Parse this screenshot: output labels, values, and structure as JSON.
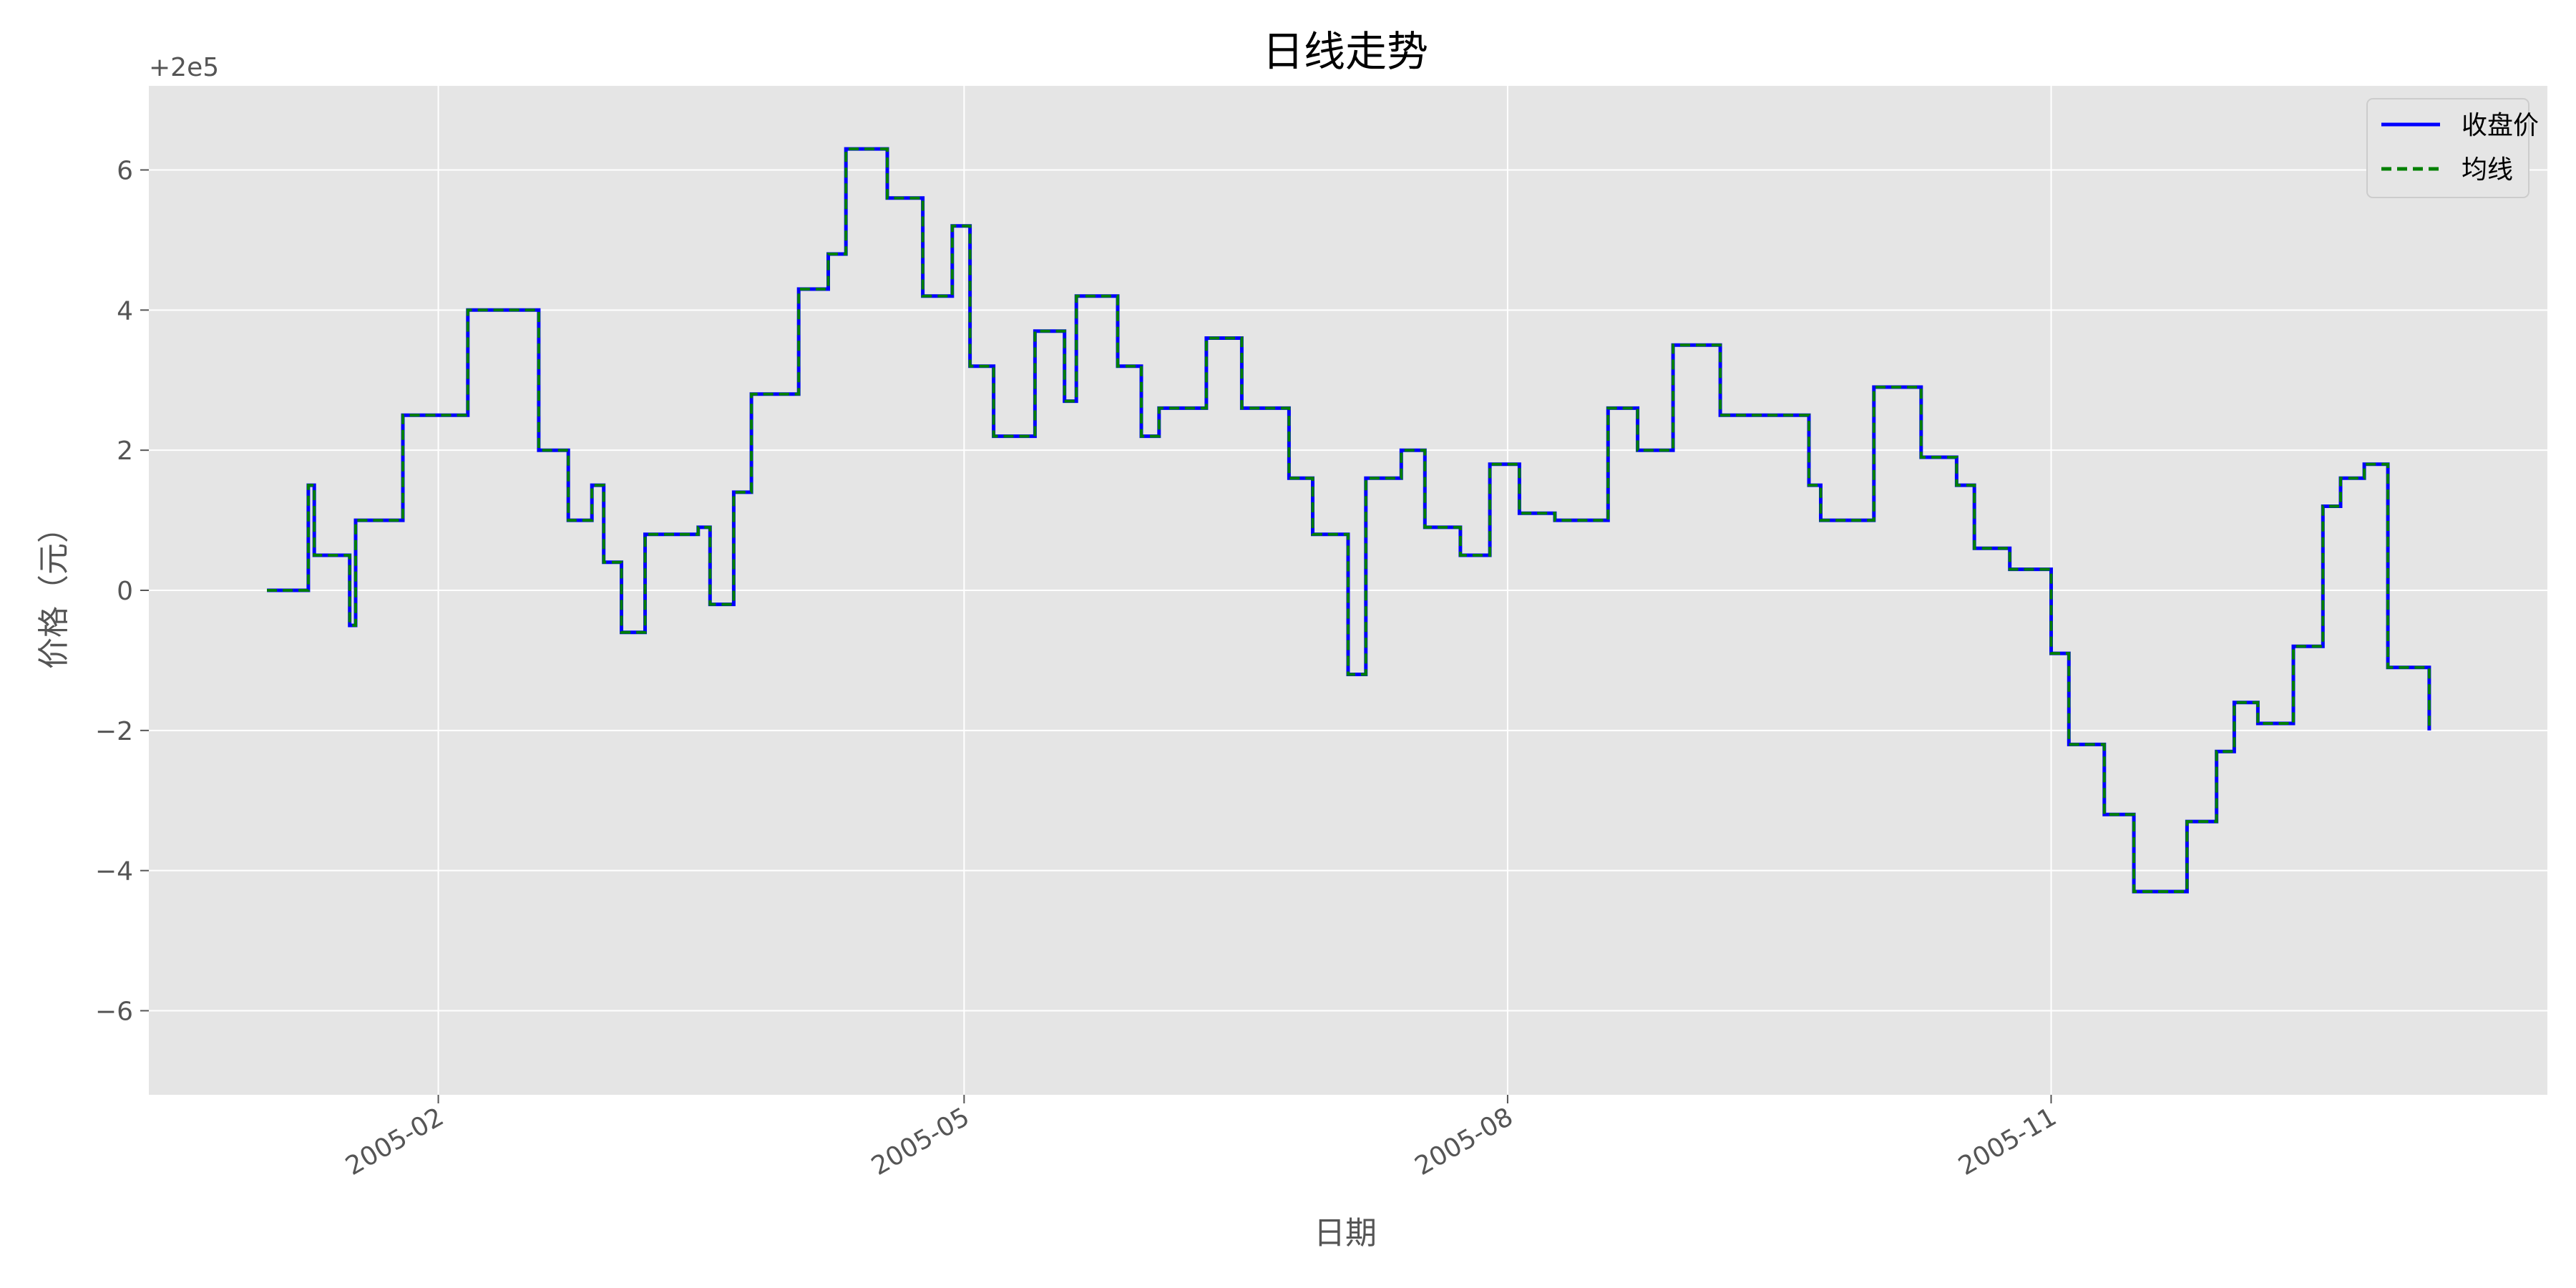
{
  "chart_data": {
    "type": "line",
    "title": "日线走势",
    "xlabel": "日期",
    "ylabel": "价格（元）",
    "y_offset_label": "+2e5",
    "x_ticks": [
      "2005-02",
      "2005-05",
      "2005-08",
      "2005-11"
    ],
    "x_tick_dates": [
      "2005-02-01",
      "2005-05-01",
      "2005-08-01",
      "2005-11-01"
    ],
    "xlim": [
      "2004-12-14",
      "2006-01-24"
    ],
    "y_ticks": [
      -6,
      -4,
      -2,
      0,
      2,
      4,
      6
    ],
    "y_tick_labels": [
      "−6",
      "−4",
      "−2",
      "0",
      "2",
      "4",
      "6"
    ],
    "ylim": [
      -7.2,
      7.2
    ],
    "grid": true,
    "legend_position": "top-right",
    "series": [
      {
        "name": "收盘价",
        "color": "#0000ff",
        "style": "solid",
        "x": [
          "2005-01-03",
          "2005-01-10",
          "2005-01-11",
          "2005-01-17",
          "2005-01-18",
          "2005-01-26",
          "2005-02-06",
          "2005-02-18",
          "2005-02-23",
          "2005-02-27",
          "2005-03-01",
          "2005-03-04",
          "2005-03-08",
          "2005-03-17",
          "2005-03-19",
          "2005-03-23",
          "2005-03-26",
          "2005-04-03",
          "2005-04-08",
          "2005-04-11",
          "2005-04-18",
          "2005-04-24",
          "2005-04-29",
          "2005-05-02",
          "2005-05-06",
          "2005-05-13",
          "2005-05-18",
          "2005-05-20",
          "2005-05-27",
          "2005-05-31",
          "2005-06-03",
          "2005-06-11",
          "2005-06-17",
          "2005-06-25",
          "2005-06-29",
          "2005-07-05",
          "2005-07-08",
          "2005-07-14",
          "2005-07-18",
          "2005-07-24",
          "2005-07-29",
          "2005-08-03",
          "2005-08-09",
          "2005-08-18",
          "2005-08-23",
          "2005-08-29",
          "2005-09-06",
          "2005-09-21",
          "2005-09-23",
          "2005-10-02",
          "2005-10-10",
          "2005-10-16",
          "2005-10-19",
          "2005-10-25",
          "2005-11-01",
          "2005-11-04",
          "2005-11-10",
          "2005-11-15",
          "2005-11-24",
          "2005-11-29",
          "2005-12-02",
          "2005-12-06",
          "2005-12-12",
          "2005-12-17",
          "2005-12-20",
          "2005-12-24",
          "2005-12-28",
          "2006-01-04"
        ],
        "y": [
          0.0,
          1.5,
          0.5,
          -0.5,
          1.0,
          2.5,
          4.0,
          2.0,
          1.0,
          1.5,
          0.4,
          -0.6,
          0.8,
          0.9,
          -0.2,
          1.4,
          2.8,
          4.3,
          4.8,
          6.3,
          5.6,
          4.2,
          5.2,
          3.2,
          2.2,
          3.7,
          2.7,
          4.2,
          3.2,
          2.2,
          2.6,
          3.6,
          2.6,
          1.6,
          0.8,
          -1.2,
          1.6,
          2.0,
          0.9,
          0.5,
          1.8,
          1.1,
          1.0,
          2.6,
          2.0,
          3.5,
          2.5,
          1.5,
          1.0,
          2.9,
          1.9,
          1.5,
          0.6,
          0.3,
          -0.9,
          -2.2,
          -3.2,
          -4.3,
          -3.3,
          -2.3,
          -1.6,
          -1.9,
          -0.8,
          1.2,
          1.6,
          1.8,
          -1.1,
          -2.0
        ]
      },
      {
        "name": "均线",
        "color": "#008000",
        "style": "dashed",
        "x": [
          "2005-01-03",
          "2005-01-10",
          "2005-01-11",
          "2005-01-17",
          "2005-01-18",
          "2005-01-26",
          "2005-02-06",
          "2005-02-18",
          "2005-02-23",
          "2005-02-27",
          "2005-03-01",
          "2005-03-04",
          "2005-03-08",
          "2005-03-17",
          "2005-03-19",
          "2005-03-23",
          "2005-03-26",
          "2005-04-03",
          "2005-04-08",
          "2005-04-11",
          "2005-04-18",
          "2005-04-24",
          "2005-04-29",
          "2005-05-02",
          "2005-05-06",
          "2005-05-13",
          "2005-05-18",
          "2005-05-20",
          "2005-05-27",
          "2005-05-31",
          "2005-06-03",
          "2005-06-11",
          "2005-06-17",
          "2005-06-25",
          "2005-06-29",
          "2005-07-05",
          "2005-07-08",
          "2005-07-14",
          "2005-07-18",
          "2005-07-24",
          "2005-07-29",
          "2005-08-03",
          "2005-08-09",
          "2005-08-18",
          "2005-08-23",
          "2005-08-29",
          "2005-09-06",
          "2005-09-21",
          "2005-09-23",
          "2005-10-02",
          "2005-10-10",
          "2005-10-16",
          "2005-10-19",
          "2005-10-25",
          "2005-11-01",
          "2005-11-04",
          "2005-11-10",
          "2005-11-15",
          "2005-11-24",
          "2005-11-29",
          "2005-12-02",
          "2005-12-06",
          "2005-12-12",
          "2005-12-17",
          "2005-12-20",
          "2005-12-24",
          "2005-12-28",
          "2006-01-04"
        ],
        "y": [
          0.0,
          1.5,
          0.5,
          -0.5,
          1.0,
          2.5,
          4.0,
          2.0,
          1.0,
          1.5,
          0.4,
          -0.6,
          0.8,
          0.9,
          -0.2,
          1.4,
          2.8,
          4.3,
          4.8,
          6.3,
          5.6,
          4.2,
          5.2,
          3.2,
          2.2,
          3.7,
          2.7,
          4.2,
          3.2,
          2.2,
          2.6,
          3.6,
          2.6,
          1.6,
          0.8,
          -1.2,
          1.6,
          2.0,
          0.9,
          0.5,
          1.8,
          1.1,
          1.0,
          2.6,
          2.0,
          3.5,
          2.5,
          1.5,
          1.0,
          2.9,
          1.9,
          1.5,
          0.6,
          0.3,
          -0.9,
          -2.2,
          -3.2,
          -4.3,
          -3.3,
          -2.3,
          -1.6,
          -1.9,
          -0.8,
          1.2,
          1.6,
          1.8,
          -1.1,
          -2.0
        ]
      }
    ]
  }
}
